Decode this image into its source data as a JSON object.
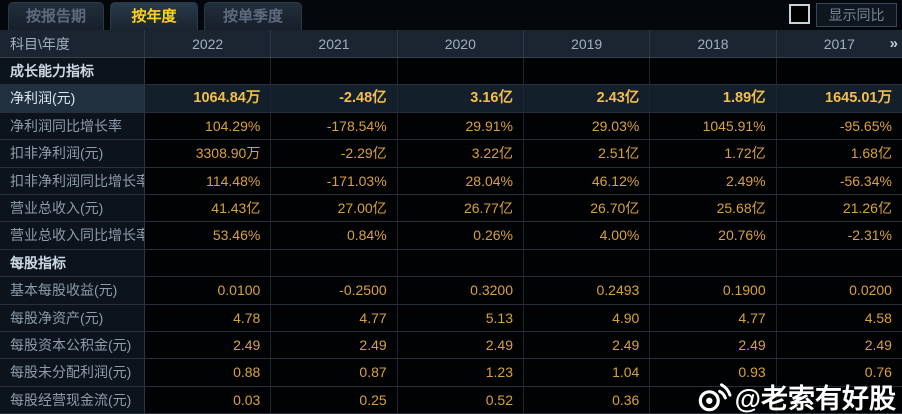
{
  "tabs": [
    {
      "label": "按报告期",
      "active": false
    },
    {
      "label": "按年度",
      "active": true
    },
    {
      "label": "按单季度",
      "active": false
    }
  ],
  "controls": {
    "show_yoy_label": "显示同比",
    "checkbox_checked": false
  },
  "table": {
    "corner_header": "科目\\年度",
    "year_columns": [
      "2022",
      "2021",
      "2020",
      "2019",
      "2018",
      "2017"
    ],
    "more_icon": "»",
    "rows": [
      {
        "type": "section",
        "label": "成长能力指标",
        "values": [
          "",
          "",
          "",
          "",
          "",
          ""
        ]
      },
      {
        "type": "data",
        "highlight": true,
        "label": "净利润(元)",
        "values": [
          "1064.84万",
          "-2.48亿",
          "3.16亿",
          "2.43亿",
          "1.89亿",
          "1645.01万"
        ]
      },
      {
        "type": "data",
        "label": "净利润同比增长率",
        "values": [
          "104.29%",
          "-178.54%",
          "29.91%",
          "29.03%",
          "1045.91%",
          "-95.65%"
        ]
      },
      {
        "type": "data",
        "label": "扣非净利润(元)",
        "values": [
          "3308.90万",
          "-2.29亿",
          "3.22亿",
          "2.51亿",
          "1.72亿",
          "1.68亿"
        ]
      },
      {
        "type": "data",
        "label": "扣非净利润同比增长率",
        "values": [
          "114.48%",
          "-171.03%",
          "28.04%",
          "46.12%",
          "2.49%",
          "-56.34%"
        ]
      },
      {
        "type": "data",
        "label": "营业总收入(元)",
        "values": [
          "41.43亿",
          "27.00亿",
          "26.77亿",
          "26.70亿",
          "25.68亿",
          "21.26亿"
        ]
      },
      {
        "type": "data",
        "label": "营业总收入同比增长率",
        "values": [
          "53.46%",
          "0.84%",
          "0.26%",
          "4.00%",
          "20.76%",
          "-2.31%"
        ]
      },
      {
        "type": "section",
        "label": "每股指标",
        "values": [
          "",
          "",
          "",
          "",
          "",
          ""
        ]
      },
      {
        "type": "data",
        "label": "基本每股收益(元)",
        "values": [
          "0.0100",
          "-0.2500",
          "0.3200",
          "0.2493",
          "0.1900",
          "0.0200"
        ]
      },
      {
        "type": "data",
        "label": "每股净资产(元)",
        "values": [
          "4.78",
          "4.77",
          "5.13",
          "4.90",
          "4.77",
          "4.58"
        ]
      },
      {
        "type": "data",
        "label": "每股资本公积金(元)",
        "values": [
          "2.49",
          "2.49",
          "2.49",
          "2.49",
          "2.49",
          "2.49"
        ]
      },
      {
        "type": "data",
        "label": "每股未分配利润(元)",
        "values": [
          "0.88",
          "0.87",
          "1.23",
          "1.04",
          "0.93",
          "0.76"
        ]
      },
      {
        "type": "data",
        "label": "每股经营现金流(元)",
        "values": [
          "0.03",
          "0.25",
          "0.52",
          "0.36",
          "",
          ""
        ]
      }
    ]
  },
  "watermark": {
    "icon": "weibo-icon",
    "text": "@老索有好股"
  },
  "colors": {
    "value_gold": "#d9a13d",
    "highlight_gold": "#f3be49",
    "active_tab": "#ffd21e",
    "header_bg": "#1a2531",
    "highlight_row_bg": "#141f2c",
    "label_col_bg": "#0c131c"
  }
}
